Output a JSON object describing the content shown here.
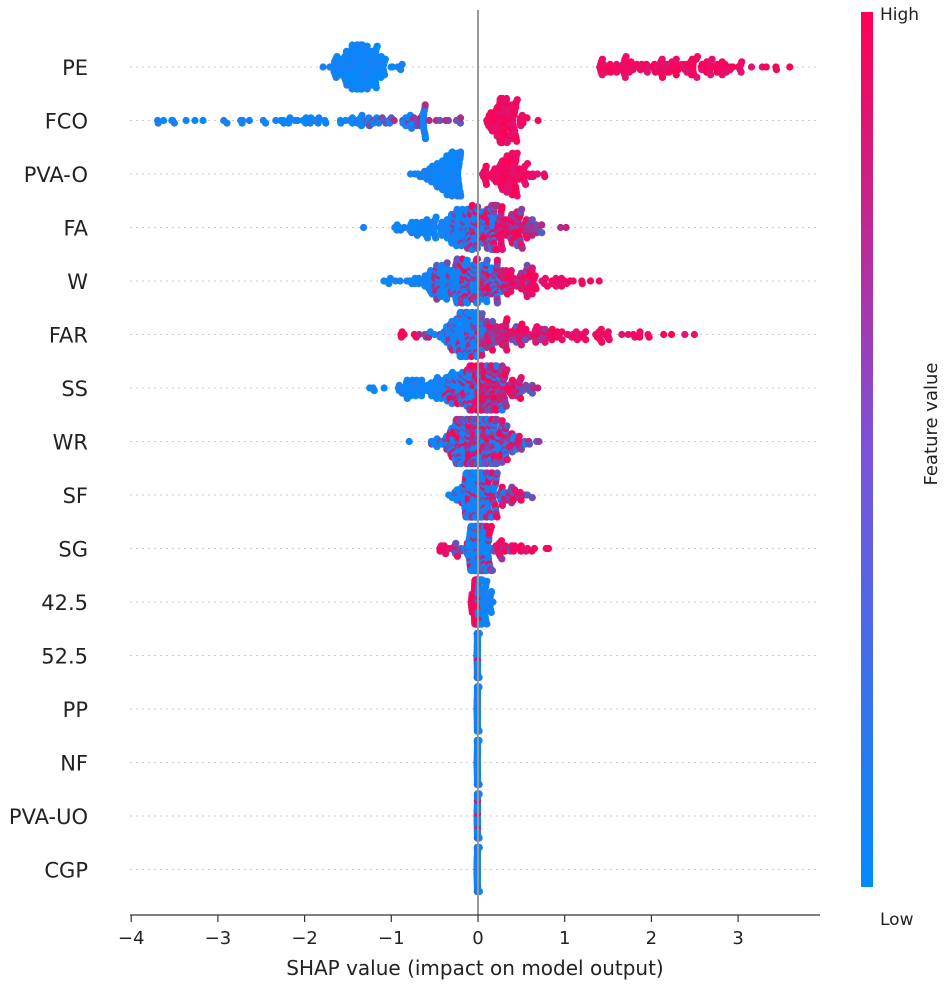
{
  "chart_data": {
    "type": "scatter",
    "subtype": "shap-beeswarm",
    "xlabel": "SHAP value (impact on model output)",
    "xlim": [
      -4.1,
      4.0
    ],
    "x_ticks": [
      -4,
      -3,
      -2,
      -1,
      0,
      1,
      2,
      3
    ],
    "x_tick_labels": [
      "−4",
      "−3",
      "−2",
      "−1",
      "0",
      "1",
      "2",
      "3"
    ],
    "grid": false,
    "colorbar": {
      "label": "Feature value",
      "high_label": "High",
      "low_label": "Low",
      "high_color": "#ff0052",
      "low_color": "#008bfb",
      "placement": "right"
    },
    "features": [
      {
        "name": "PE",
        "low": {
          "x_min": -1.8,
          "x_max": -0.7,
          "center": -1.35,
          "spread": 0.18,
          "count": 170
        },
        "high": {
          "x_min": 1.4,
          "x_max": 3.6,
          "center": 2.2,
          "spread": 0.55,
          "count": 140
        },
        "mid": {
          "count": 0
        }
      },
      {
        "name": "FCO",
        "low": {
          "x_min": -3.7,
          "x_max": -0.6,
          "center": -1.6,
          "spread": 0.9,
          "count": 80
        },
        "high": {
          "x_min": 0.1,
          "x_max": 1.3,
          "center": 0.3,
          "spread": 0.12,
          "count": 110
        },
        "mid": {
          "x_min": -1.3,
          "x_max": -0.2,
          "center": -0.8,
          "spread": 0.35,
          "count": 30
        }
      },
      {
        "name": "PVA-O",
        "low": {
          "x_min": -1.05,
          "x_max": -0.2,
          "center": -0.35,
          "spread": 0.15,
          "count": 110
        },
        "high": {
          "x_min": 0.05,
          "x_max": 0.8,
          "center": 0.35,
          "spread": 0.15,
          "count": 100
        },
        "mid": {
          "count": 0
        }
      },
      {
        "name": "FA",
        "low": {
          "x_min": -1.35,
          "x_max": 0.2,
          "center": -0.3,
          "spread": 0.35,
          "count": 160
        },
        "high": {
          "x_min": -0.1,
          "x_max": 0.7,
          "center": 0.2,
          "spread": 0.2,
          "count": 90
        },
        "mid": {
          "x_min": -0.3,
          "x_max": 1.45,
          "center": 0.3,
          "spread": 0.3,
          "count": 80
        }
      },
      {
        "name": "W",
        "low": {
          "x_min": -1.1,
          "x_max": 0.3,
          "center": -0.3,
          "spread": 0.3,
          "count": 140
        },
        "high": {
          "x_min": -0.2,
          "x_max": 1.6,
          "center": 0.4,
          "spread": 0.4,
          "count": 100
        },
        "mid": {
          "x_min": -0.5,
          "x_max": 0.6,
          "center": 0.0,
          "spread": 0.3,
          "count": 90
        }
      },
      {
        "name": "FAR",
        "low": {
          "x_min": -0.6,
          "x_max": 0.1,
          "center": -0.15,
          "spread": 0.12,
          "count": 110
        },
        "high": {
          "x_min": -0.9,
          "x_max": 2.5,
          "center": 0.7,
          "spread": 0.7,
          "count": 110
        },
        "mid": {
          "x_min": -0.7,
          "x_max": 0.8,
          "center": 0.1,
          "spread": 0.3,
          "count": 90
        }
      },
      {
        "name": "SS",
        "low": {
          "x_min": -1.75,
          "x_max": 0.3,
          "center": -0.4,
          "spread": 0.35,
          "count": 140
        },
        "high": {
          "x_min": -0.5,
          "x_max": 0.5,
          "center": 0.1,
          "spread": 0.2,
          "count": 120
        },
        "mid": {
          "x_min": -0.8,
          "x_max": 0.7,
          "center": 0.1,
          "spread": 0.25,
          "count": 110
        }
      },
      {
        "name": "WR",
        "low": {
          "x_min": -0.8,
          "x_max": 0.6,
          "center": -0.05,
          "spread": 0.25,
          "count": 130
        },
        "high": {
          "x_min": -0.7,
          "x_max": 0.5,
          "center": 0.05,
          "spread": 0.2,
          "count": 90
        },
        "mid": {
          "x_min": -0.7,
          "x_max": 0.75,
          "center": 0.05,
          "spread": 0.25,
          "count": 120
        }
      },
      {
        "name": "SF",
        "low": {
          "x_min": -0.5,
          "x_max": 0.5,
          "center": -0.02,
          "spread": 0.12,
          "count": 160
        },
        "high": {
          "x_min": -0.5,
          "x_max": 0.5,
          "center": 0.15,
          "spread": 0.2,
          "count": 50
        },
        "mid": {
          "x_min": -0.3,
          "x_max": 0.65,
          "center": 0.2,
          "spread": 0.2,
          "count": 40
        }
      },
      {
        "name": "SG",
        "low": {
          "x_min": -0.4,
          "x_max": 0.3,
          "center": 0.0,
          "spread": 0.06,
          "count": 160
        },
        "high": {
          "x_min": -0.45,
          "x_max": 1.25,
          "center": 0.2,
          "spread": 0.35,
          "count": 50
        },
        "mid": {
          "x_min": -0.3,
          "x_max": 0.8,
          "center": 0.1,
          "spread": 0.2,
          "count": 30
        }
      },
      {
        "name": "42.5",
        "low": {
          "x_min": 0.0,
          "x_max": 0.35,
          "center": 0.05,
          "spread": 0.08,
          "count": 60
        },
        "high": {
          "x_min": -0.12,
          "x_max": 0.02,
          "center": -0.03,
          "spread": 0.025,
          "count": 60
        },
        "mid": {
          "count": 0
        }
      },
      {
        "name": "52.5",
        "low": {
          "x_min": -0.02,
          "x_max": 0.02,
          "center": 0.0,
          "spread": 0.005,
          "count": 200
        },
        "high": {
          "x_min": -0.02,
          "x_max": 0.02,
          "center": 0.0,
          "spread": 0.005,
          "count": 30
        },
        "mid": {
          "count": 0
        }
      },
      {
        "name": "PP",
        "low": {
          "x_min": -0.02,
          "x_max": 0.02,
          "center": 0.0,
          "spread": 0.005,
          "count": 200
        },
        "high": {
          "count": 0
        },
        "mid": {
          "count": 0
        }
      },
      {
        "name": "NF",
        "low": {
          "x_min": -0.02,
          "x_max": 0.02,
          "center": 0.0,
          "spread": 0.005,
          "count": 200
        },
        "high": {
          "count": 0
        },
        "mid": {
          "count": 0
        }
      },
      {
        "name": "PVA-UO",
        "low": {
          "x_min": -0.02,
          "x_max": 0.02,
          "center": 0.0,
          "spread": 0.005,
          "count": 180
        },
        "high": {
          "x_min": -0.02,
          "x_max": 0.02,
          "center": 0.0,
          "spread": 0.005,
          "count": 25
        },
        "mid": {
          "count": 0
        }
      },
      {
        "name": "CGP",
        "low": {
          "x_min": -0.02,
          "x_max": 0.02,
          "center": 0.0,
          "spread": 0.005,
          "count": 180
        },
        "high": {
          "x_min": -0.02,
          "x_max": 0.02,
          "center": 0.0,
          "spread": 0.005,
          "count": 15
        },
        "mid": {
          "count": 0
        }
      }
    ]
  }
}
